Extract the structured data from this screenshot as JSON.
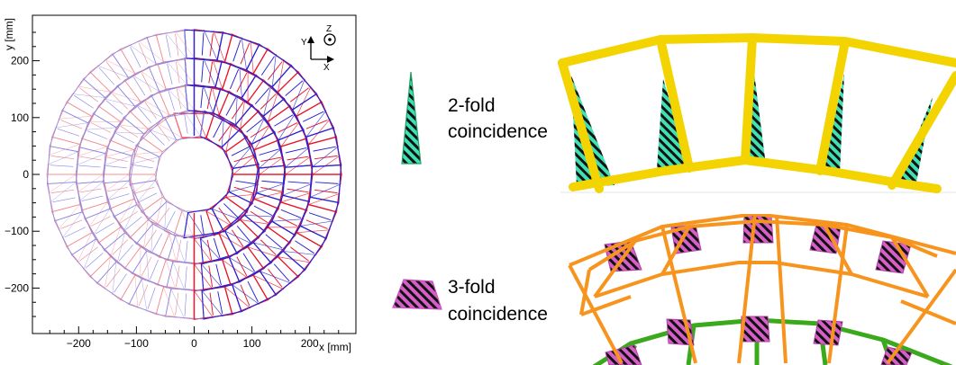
{
  "plot": {
    "xlabel": "x [mm]",
    "ylabel": "y [mm]",
    "x_ticks": [
      "−200",
      "−100",
      "0",
      "100",
      "200"
    ],
    "y_ticks": [
      "200",
      "100",
      "0",
      "−100",
      "−200"
    ],
    "xlim": [
      -280,
      280
    ],
    "ylim": [
      -280,
      280
    ],
    "axes_icon": {
      "y": "Y",
      "x": "X",
      "z": "Z"
    },
    "colors": {
      "red": "#e8172a",
      "blue": "#2b22d0",
      "light_red": "#f08b92",
      "light_blue": "#8c86e6"
    }
  },
  "legend": {
    "twofold": {
      "line1": "2-fold",
      "line2": "coincidence",
      "color": "#1fa064"
    },
    "threefold": {
      "line1": "3-fold",
      "line2": "coincidence",
      "color": "#d65fc8"
    }
  },
  "panels": {
    "twofold_frame_color": "#f4d400",
    "twofold_fill": "#3fe0b4",
    "threefold_frame_color": "#f7941d",
    "threefold_inner_color": "#3aaa1c",
    "threefold_fill": "#d55fc7"
  }
}
